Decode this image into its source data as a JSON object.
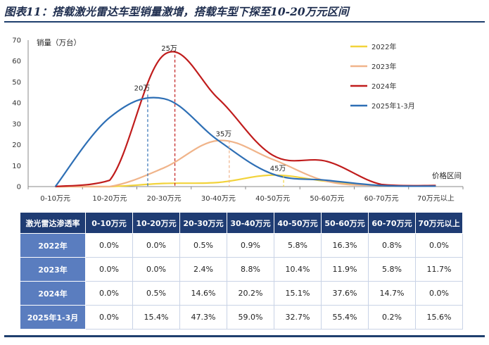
{
  "title": "图表11：搭载激光雷达车型销量激增，搭载车型下探至10-20万元区间",
  "chart_data": {
    "type": "line",
    "ylabel": "销量（万台）",
    "xlabel": "价格区间",
    "ylim": [
      0,
      70
    ],
    "yticks": [
      0,
      10,
      20,
      30,
      40,
      50,
      60,
      70
    ],
    "categories": [
      "0-10万元",
      "10-20万元",
      "20-30万元",
      "30-40万元",
      "40-50万元",
      "50-60万元",
      "60-70万元",
      "70万元以上"
    ],
    "legend_position": "top-right",
    "series": [
      {
        "name": "2022年",
        "color": "#f2d33b",
        "values": [
          0,
          0,
          1.5,
          2,
          5.5,
          2.5,
          0.5,
          0.2
        ]
      },
      {
        "name": "2023年",
        "color": "#f0b48a",
        "values": [
          0,
          0,
          9,
          22,
          13,
          2.5,
          0.5,
          0.2
        ]
      },
      {
        "name": "2024年",
        "color": "#c01c1c",
        "values": [
          0,
          3,
          63,
          42,
          15,
          12,
          1,
          0.5
        ]
      },
      {
        "name": "2025年1-3月",
        "color": "#2e6fb5",
        "values": [
          0,
          33,
          42,
          22,
          6,
          3,
          0.5,
          0.2
        ]
      }
    ],
    "annotations": [
      {
        "label": "20万",
        "x_index": 1.7,
        "y": 44,
        "color": "#2e6fb5"
      },
      {
        "label": "25万",
        "x_index": 2.2,
        "y": 63,
        "color": "#c01c1c"
      },
      {
        "label": "35万",
        "x_index": 3.2,
        "y": 22,
        "color": "#f0b48a"
      },
      {
        "label": "45万",
        "x_index": 4.2,
        "y": 5.5,
        "color": "#f2d33b"
      }
    ]
  },
  "table": {
    "header": [
      "激光雷达渗透率",
      "0-10万元",
      "10-20万元",
      "20-30万元",
      "30-40万元",
      "40-50万元",
      "50-60万元",
      "60-70万元",
      "70万元以上"
    ],
    "rows": [
      {
        "label": "2022年",
        "values": [
          "0.0%",
          "0.0%",
          "0.5%",
          "0.9%",
          "5.8%",
          "16.3%",
          "0.8%",
          "0.0%"
        ]
      },
      {
        "label": "2023年",
        "values": [
          "0.0%",
          "0.0%",
          "2.4%",
          "8.8%",
          "10.4%",
          "11.9%",
          "5.8%",
          "11.7%"
        ]
      },
      {
        "label": "2024年",
        "values": [
          "0.0%",
          "0.5%",
          "14.6%",
          "20.2%",
          "15.1%",
          "37.6%",
          "14.7%",
          "0.0%"
        ]
      },
      {
        "label": "2025年1-3月",
        "values": [
          "0.0%",
          "15.4%",
          "47.3%",
          "59.0%",
          "32.7%",
          "55.4%",
          "0.2%",
          "15.6%"
        ]
      }
    ]
  }
}
